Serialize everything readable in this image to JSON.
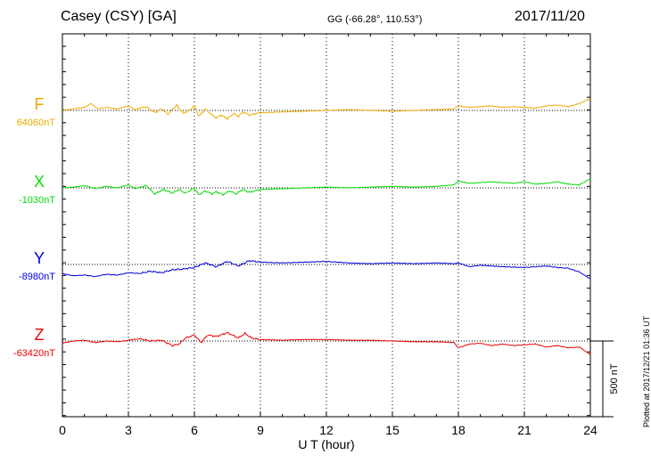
{
  "header": {
    "station": "Casey (CSY)  [GA]",
    "coords": "GG (-66.28°, 110.53°)",
    "date": "2017/11/20"
  },
  "plotted_note": "Plotted at 2017/12/21 01:36 UT",
  "chart_data": {
    "type": "line",
    "xlabel": "U T (hour)",
    "xlim": [
      0,
      24
    ],
    "xticks": [
      0,
      3,
      6,
      9,
      12,
      15,
      18,
      21,
      24
    ],
    "scale_bar_label": "500 nT",
    "scale_bar_nT": 500,
    "grid": "dotted vertical lines at 3-hour intervals",
    "series": [
      {
        "name": "F",
        "baseline_label": "64060nT",
        "baseline_nT": 64060,
        "color": "#f0a800",
        "points": [
          [
            0,
            0
          ],
          [
            0.5,
            -10
          ],
          [
            1,
            -20
          ],
          [
            1.3,
            -45
          ],
          [
            1.6,
            -10
          ],
          [
            2,
            -20
          ],
          [
            2.5,
            -10
          ],
          [
            3,
            -30
          ],
          [
            3.3,
            -5
          ],
          [
            3.8,
            -25
          ],
          [
            4.2,
            15
          ],
          [
            4.5,
            -10
          ],
          [
            4.8,
            25
          ],
          [
            5.2,
            -35
          ],
          [
            5.5,
            20
          ],
          [
            5.8,
            -5
          ],
          [
            6,
            -30
          ],
          [
            6.2,
            40
          ],
          [
            6.5,
            -10
          ],
          [
            6.8,
            30
          ],
          [
            7,
            50
          ],
          [
            7.2,
            30
          ],
          [
            7.5,
            55
          ],
          [
            7.8,
            20
          ],
          [
            8,
            40
          ],
          [
            8.2,
            10
          ],
          [
            8.5,
            30
          ],
          [
            9,
            15
          ],
          [
            10,
            10
          ],
          [
            11,
            5
          ],
          [
            12,
            0
          ],
          [
            13,
            -5
          ],
          [
            14,
            0
          ],
          [
            15,
            5
          ],
          [
            16,
            0
          ],
          [
            17,
            -5
          ],
          [
            17.8,
            -10
          ],
          [
            18,
            -30
          ],
          [
            18.5,
            -20
          ],
          [
            19,
            -25
          ],
          [
            19.5,
            -30
          ],
          [
            20,
            -20
          ],
          [
            20.5,
            -25
          ],
          [
            21,
            -20
          ],
          [
            21.5,
            -15
          ],
          [
            22,
            -30
          ],
          [
            22.5,
            -35
          ],
          [
            23,
            -25
          ],
          [
            23.5,
            -45
          ],
          [
            24,
            -80
          ]
        ]
      },
      {
        "name": "X",
        "baseline_label": "-1030nT",
        "baseline_nT": -1030,
        "color": "#00dd00",
        "points": [
          [
            0,
            0
          ],
          [
            0.5,
            -5
          ],
          [
            1,
            -15
          ],
          [
            1.5,
            5
          ],
          [
            2,
            -10
          ],
          [
            2.5,
            0
          ],
          [
            3,
            -20
          ],
          [
            3.3,
            5
          ],
          [
            3.8,
            -15
          ],
          [
            4.2,
            40
          ],
          [
            4.6,
            10
          ],
          [
            5,
            35
          ],
          [
            5.3,
            10
          ],
          [
            5.6,
            35
          ],
          [
            6,
            0
          ],
          [
            6.2,
            45
          ],
          [
            6.5,
            20
          ],
          [
            6.8,
            40
          ],
          [
            7,
            25
          ],
          [
            7.3,
            45
          ],
          [
            7.6,
            20
          ],
          [
            7.9,
            40
          ],
          [
            8.2,
            10
          ],
          [
            8.5,
            30
          ],
          [
            9,
            10
          ],
          [
            10,
            5
          ],
          [
            11,
            0
          ],
          [
            12,
            -5
          ],
          [
            13,
            0
          ],
          [
            14,
            -5
          ],
          [
            15,
            -10
          ],
          [
            16,
            -5
          ],
          [
            17,
            -10
          ],
          [
            17.8,
            -20
          ],
          [
            18,
            -45
          ],
          [
            18.5,
            -30
          ],
          [
            19,
            -35
          ],
          [
            19.5,
            -40
          ],
          [
            20,
            -35
          ],
          [
            20.5,
            -30
          ],
          [
            21,
            -40
          ],
          [
            21.5,
            -25
          ],
          [
            22,
            -30
          ],
          [
            22.5,
            -40
          ],
          [
            23,
            -25
          ],
          [
            23.5,
            -20
          ],
          [
            24,
            -60
          ]
        ]
      },
      {
        "name": "Y",
        "baseline_label": "-8980nT",
        "baseline_nT": -8980,
        "color": "#0000dd",
        "points": [
          [
            0,
            60
          ],
          [
            0.5,
            75
          ],
          [
            1,
            70
          ],
          [
            1.5,
            80
          ],
          [
            2,
            65
          ],
          [
            2.5,
            70
          ],
          [
            3,
            55
          ],
          [
            3.5,
            60
          ],
          [
            4,
            45
          ],
          [
            4.5,
            55
          ],
          [
            5,
            35
          ],
          [
            5.5,
            30
          ],
          [
            6,
            20
          ],
          [
            6.5,
            -10
          ],
          [
            7,
            15
          ],
          [
            7.5,
            -20
          ],
          [
            8,
            10
          ],
          [
            8.5,
            -25
          ],
          [
            9,
            -15
          ],
          [
            10,
            -10
          ],
          [
            11,
            -15
          ],
          [
            12,
            -20
          ],
          [
            13,
            -10
          ],
          [
            14,
            -5
          ],
          [
            15,
            -10
          ],
          [
            16,
            -5
          ],
          [
            17,
            -10
          ],
          [
            17.8,
            -5
          ],
          [
            18,
            -10
          ],
          [
            18.5,
            15
          ],
          [
            19,
            5
          ],
          [
            20,
            15
          ],
          [
            21,
            20
          ],
          [
            22,
            10
          ],
          [
            22.5,
            20
          ],
          [
            23,
            25
          ],
          [
            23.5,
            50
          ],
          [
            24,
            95
          ]
        ]
      },
      {
        "name": "Z",
        "baseline_label": "-63420nT",
        "baseline_nT": -63420,
        "color": "#ee0000",
        "points": [
          [
            0,
            15
          ],
          [
            0.5,
            0
          ],
          [
            1,
            -5
          ],
          [
            1.5,
            10
          ],
          [
            2,
            0
          ],
          [
            2.5,
            5
          ],
          [
            3,
            -5
          ],
          [
            3.5,
            -15
          ],
          [
            4,
            0
          ],
          [
            4.5,
            -5
          ],
          [
            5,
            30
          ],
          [
            5.3,
            20
          ],
          [
            5.6,
            -20
          ],
          [
            6,
            -40
          ],
          [
            6.3,
            10
          ],
          [
            6.6,
            -40
          ],
          [
            7,
            -30
          ],
          [
            7.5,
            -55
          ],
          [
            8,
            -20
          ],
          [
            8.3,
            -50
          ],
          [
            8.6,
            -20
          ],
          [
            9,
            -10
          ],
          [
            10,
            -5
          ],
          [
            11,
            -10
          ],
          [
            12,
            -10
          ],
          [
            13,
            -5
          ],
          [
            14,
            -5
          ],
          [
            15,
            0
          ],
          [
            16,
            5
          ],
          [
            17,
            5
          ],
          [
            17.8,
            10
          ],
          [
            18,
            45
          ],
          [
            18.5,
            20
          ],
          [
            19,
            15
          ],
          [
            19.5,
            30
          ],
          [
            20,
            20
          ],
          [
            20.5,
            30
          ],
          [
            21,
            25
          ],
          [
            21.5,
            20
          ],
          [
            22,
            40
          ],
          [
            22.5,
            30
          ],
          [
            23,
            45
          ],
          [
            23.5,
            40
          ],
          [
            24,
            90
          ]
        ]
      }
    ]
  }
}
